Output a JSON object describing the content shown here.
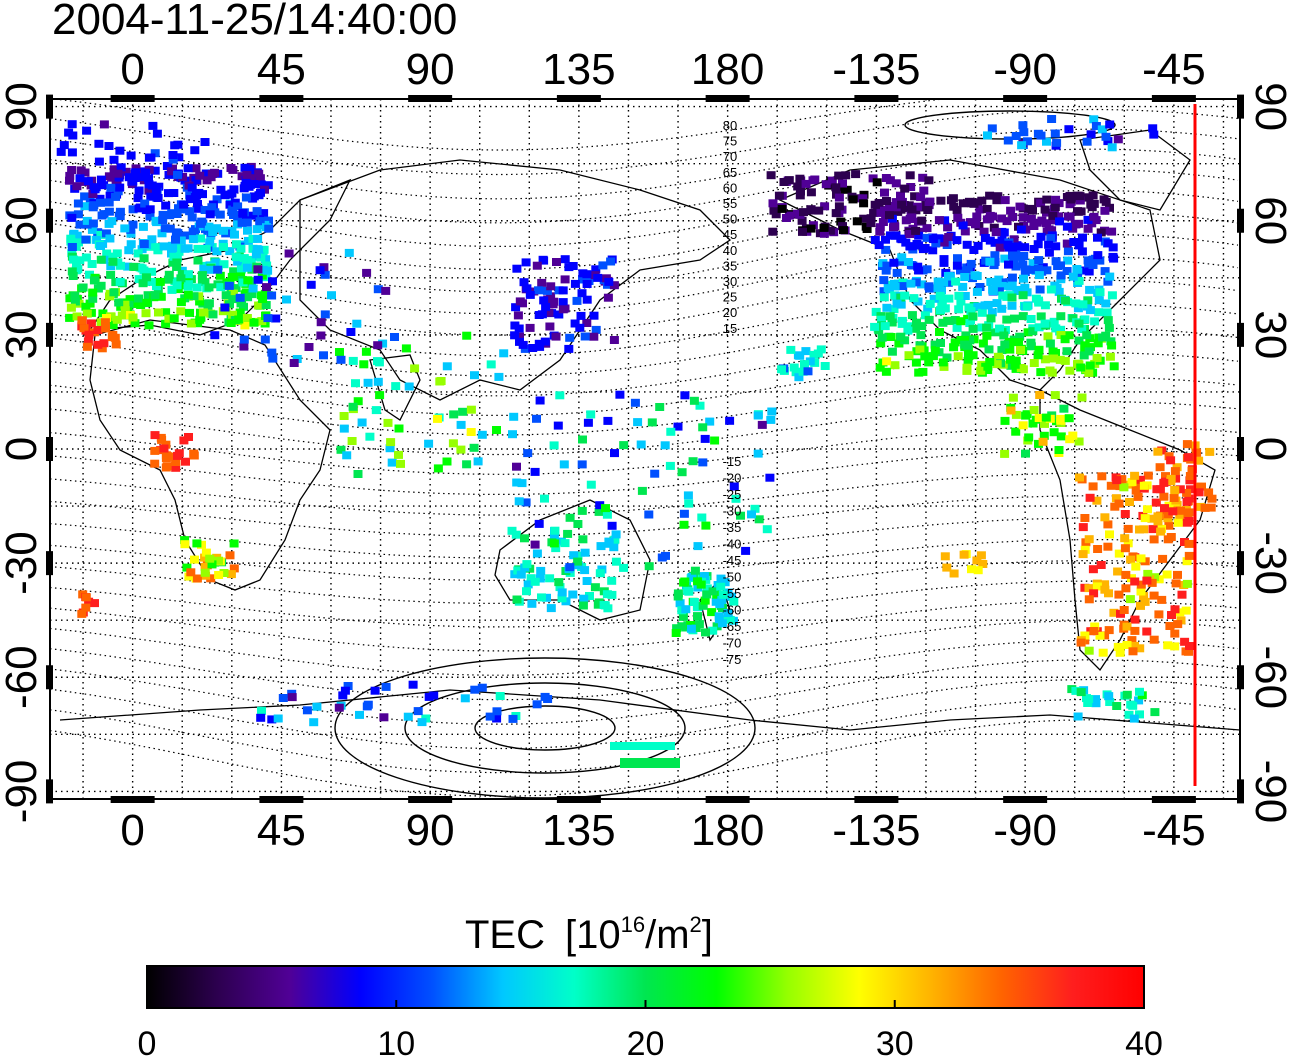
{
  "timestamp": "2004-11-25/14:40:00",
  "axes": {
    "x_ticks": [
      "0",
      "45",
      "90",
      "135",
      "180",
      "-135",
      "-90",
      "-45"
    ],
    "y_ticks": [
      "90",
      "60",
      "30",
      "0",
      "-30",
      "-60",
      "-90"
    ]
  },
  "contour_labels": {
    "north": [
      "80",
      "75",
      "70",
      "65",
      "60",
      "55",
      "50",
      "45",
      "40",
      "35",
      "30",
      "25",
      "20",
      "15"
    ],
    "south": [
      "-15",
      "-20",
      "-25",
      "-30",
      "-35",
      "-40",
      "-45",
      "-50",
      "-55",
      "-60",
      "-65",
      "-70",
      "-75"
    ]
  },
  "colorbar": {
    "title": "TEC",
    "unit_base": "[10",
    "unit_exp": "16",
    "unit_mid": "/m",
    "unit_exp2": "2",
    "unit_end": "]",
    "ticks": [
      "0",
      "10",
      "20",
      "30",
      "40"
    ],
    "colors": [
      "#000000",
      "#2d0050",
      "#500096",
      "#0000ff",
      "#0050ff",
      "#00c8ff",
      "#00ffc8",
      "#00e650",
      "#00ff00",
      "#96ff00",
      "#ffff00",
      "#ffb400",
      "#ff6400",
      "#ff1e1e",
      "#ff0000"
    ]
  },
  "marker_color": "#ff0000"
}
